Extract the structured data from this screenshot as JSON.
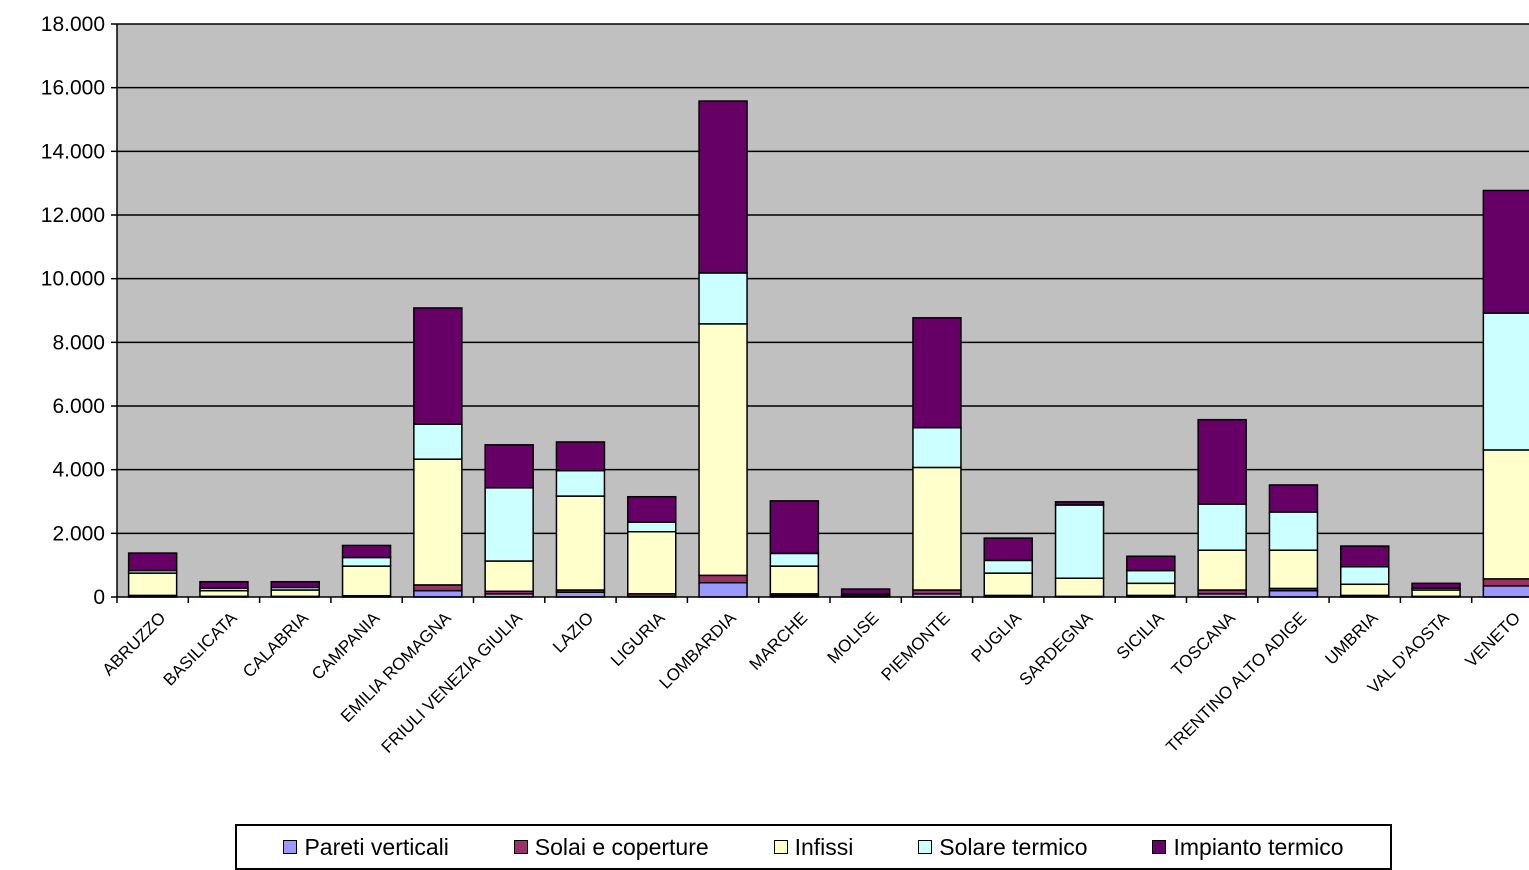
{
  "chart_data": {
    "type": "bar",
    "stacked": true,
    "ylim": [
      0,
      18000
    ],
    "y_ticks": [
      "0",
      "2.000",
      "4.000",
      "6.000",
      "8.000",
      "10.000",
      "12.000",
      "14.000",
      "16.000",
      "18.000"
    ],
    "y_tick_values": [
      0,
      2000,
      4000,
      6000,
      8000,
      10000,
      12000,
      14000,
      16000,
      18000
    ],
    "grid": true,
    "legend_position": "bottom",
    "plot_background": "#c0c0c0",
    "categories": [
      "ABRUZZO",
      "BASILICATA",
      "CALABRIA",
      "CAMPANIA",
      "EMILIA ROMAGNA",
      "FRIULI VENEZIA GIULIA",
      "LAZIO",
      "LIGURIA",
      "LOMBARDIA",
      "MARCHE",
      "MOLISE",
      "PIEMONTE",
      "PUGLIA",
      "SARDEGNA",
      "SICILIA",
      "TOSCANA",
      "TRENTINO ALTO ADIGE",
      "UMBRIA",
      "VAL D'AOSTA",
      "VENETO"
    ],
    "series": [
      {
        "name": "Pareti verticali",
        "color": "#9999ff",
        "values": [
          30,
          10,
          10,
          20,
          200,
          100,
          150,
          20,
          450,
          50,
          10,
          100,
          30,
          10,
          30,
          100,
          200,
          30,
          10,
          350
        ]
      },
      {
        "name": "Solai e coperture",
        "color": "#993366",
        "values": [
          20,
          10,
          10,
          20,
          180,
          80,
          70,
          80,
          230,
          50,
          20,
          120,
          20,
          10,
          20,
          120,
          70,
          20,
          10,
          220
        ]
      },
      {
        "name": "Infissi",
        "color": "#ffffcc",
        "values": [
          700,
          180,
          200,
          930,
          3950,
          950,
          2950,
          1950,
          7900,
          870,
          50,
          3850,
          700,
          570,
          380,
          1250,
          1200,
          350,
          200,
          4050
        ]
      },
      {
        "name": "Solare termico",
        "color": "#ccffff",
        "values": [
          80,
          80,
          80,
          270,
          1100,
          2300,
          800,
          300,
          1600,
          400,
          20,
          1250,
          400,
          2300,
          400,
          1450,
          1200,
          550,
          60,
          4300
        ]
      },
      {
        "name": "Impianto termico",
        "color": "#660066",
        "values": [
          550,
          200,
          180,
          380,
          3650,
          1350,
          900,
          800,
          5400,
          1650,
          150,
          3450,
          700,
          100,
          450,
          2650,
          850,
          650,
          150,
          3850
        ]
      }
    ]
  }
}
